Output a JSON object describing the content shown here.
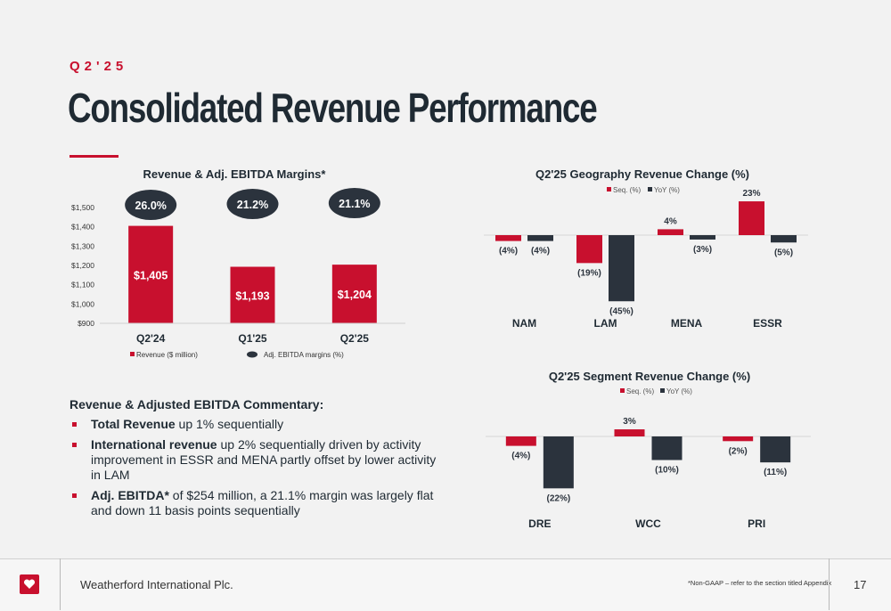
{
  "header": {
    "eyebrow": "Q2'25",
    "title": "Consolidated Revenue Performance"
  },
  "colors": {
    "accent": "#c8102e",
    "dark": "#2b333d"
  },
  "chart_data": [
    {
      "type": "bar",
      "title": "Revenue & Adj. EBITDA Margins*",
      "categories": [
        "Q2'24",
        "Q1'25",
        "Q2'25"
      ],
      "series": [
        {
          "name": "Revenue ($ million)",
          "values": [
            1405,
            1193,
            1204
          ],
          "labels": [
            "$1,405",
            "$1,193",
            "$1,204"
          ]
        },
        {
          "name": "Adj. EBITDA margins (%)",
          "values": [
            26.0,
            21.2,
            21.1
          ],
          "labels": [
            "26.0%",
            "21.2%",
            "21.1%"
          ]
        }
      ],
      "yticks": [
        "$900",
        "$1,000",
        "$1,100",
        "$1,200",
        "$1,300",
        "$1,400",
        "$1,500"
      ],
      "ylim": [
        900,
        1500
      ],
      "legend": "bottom"
    },
    {
      "type": "bar",
      "title": "Q2'25 Geography Revenue Change (%)",
      "categories": [
        "NAM",
        "LAM",
        "MENA",
        "ESSR"
      ],
      "series": [
        {
          "name": "Seq. (%)",
          "values": [
            -4,
            -19,
            4,
            23
          ],
          "labels": [
            "(4%)",
            "(19%)",
            "4%",
            "23%"
          ]
        },
        {
          "name": "YoY (%)",
          "values": [
            -4,
            -45,
            -3,
            -5
          ],
          "labels": [
            "(4%)",
            "(45%)",
            "(3%)",
            "(5%)"
          ]
        }
      ],
      "legend": "top"
    },
    {
      "type": "bar",
      "title": "Q2'25 Segment Revenue Change (%)",
      "categories": [
        "DRE",
        "WCC",
        "PRI"
      ],
      "series": [
        {
          "name": "Seq. (%)",
          "values": [
            -4,
            3,
            -2
          ],
          "labels": [
            "(4%)",
            "3%",
            "(2%)"
          ]
        },
        {
          "name": "YoY (%)",
          "values": [
            -22,
            -10,
            -11
          ],
          "labels": [
            "(22%)",
            "(10%)",
            "(11%)"
          ]
        }
      ],
      "legend": "top"
    }
  ],
  "commentary": {
    "title": "Revenue & Adjusted EBITDA Commentary:",
    "items": [
      {
        "bold": "Total Revenue",
        "text": " up 1% sequentially"
      },
      {
        "bold": "International revenue",
        "text": " up 2% sequentially driven by activity improvement in ESSR and MENA partly offset by lower activity in LAM"
      },
      {
        "bold": "Adj. EBITDA*",
        "text": " of $254 million, a 21.1% margin was largely flat and down 11 basis points sequentially"
      }
    ]
  },
  "footer": {
    "company": "Weatherford International Plc.",
    "footnote": "*Non-GAAP – refer to the section titled Appendix",
    "page": "17"
  }
}
